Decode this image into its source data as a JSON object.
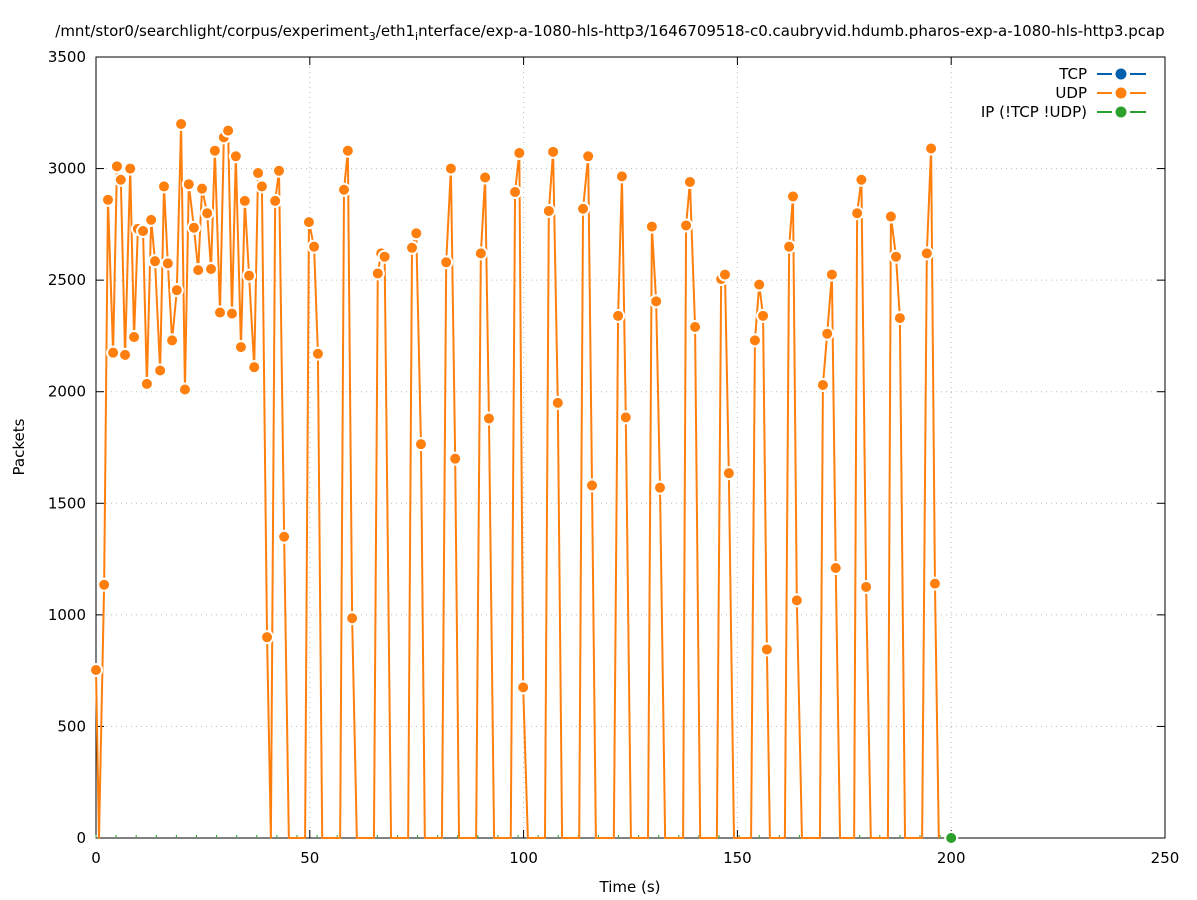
{
  "chart_data": {
    "type": "line",
    "title": "/mnt/stor0/searchlight/corpus/experiment_3/eth1_interface/exp-a-1080-hls-http3/1646709518-c0.caubryvid.hdumb.pharos-exp-a-1080-hls-http3.pcap",
    "xlabel": "Time (s)",
    "ylabel": "Packets",
    "xlim": [
      0,
      250
    ],
    "ylim": [
      0,
      3500
    ],
    "xticks": [
      0,
      50,
      100,
      150,
      200,
      250
    ],
    "yticks": [
      0,
      500,
      1000,
      1500,
      2000,
      2500,
      3000,
      3500
    ],
    "grid": true,
    "legend_position": "top-right",
    "series": [
      {
        "name": "TCP",
        "color": "#0060ad",
        "x": [],
        "y": []
      },
      {
        "name": "UDP",
        "color": "#ff7f0e",
        "x": [
          0,
          0.7,
          1.9,
          2.8,
          4,
          4.9,
          5.8,
          6.8,
          8,
          8.9,
          9.8,
          11,
          11.9,
          12.9,
          13.8,
          15,
          15.9,
          16.8,
          17.8,
          18.9,
          19.9,
          20.8,
          21.7,
          22.9,
          23.9,
          24.8,
          26,
          26.9,
          27.8,
          29,
          29.9,
          30.9,
          31.8,
          32.7,
          33.9,
          34.8,
          35.8,
          37,
          37.9,
          38.8,
          40,
          40.9,
          41.9,
          42.8,
          44,
          45.1,
          48.9,
          49.8,
          51,
          51.9,
          52.9,
          57.1,
          58,
          58.9,
          59.9,
          61,
          65,
          65.9,
          66.7,
          67.5,
          69,
          73,
          73.9,
          74.9,
          76,
          76.9,
          80.9,
          81.9,
          83,
          84,
          84.9,
          88.9,
          90,
          91,
          91.9,
          93.1,
          97,
          98,
          99,
          99.9,
          101,
          105,
          105.9,
          106.9,
          108,
          109,
          113,
          113.9,
          115.1,
          116,
          116.9,
          121.1,
          122.1,
          123,
          123.9,
          125.1,
          129.1,
          130,
          131,
          131.9,
          133.1,
          137.3,
          138,
          138.9,
          140.1,
          141.3,
          145.2,
          146.2,
          147.1,
          148,
          149.2,
          153.2,
          154.1,
          155.1,
          156,
          156.9,
          157.6,
          161.1,
          162.1,
          163,
          163.9,
          165.1,
          169.3,
          170,
          171,
          172.1,
          173,
          174,
          177.3,
          178,
          179,
          180.1,
          181.2,
          185.2,
          185.9,
          187.1,
          188,
          189.2,
          193.2,
          194.3,
          195.3,
          196.2,
          197.1
        ],
        "y": [
          753,
          0,
          1135,
          2860,
          2175,
          3010,
          2950,
          2165,
          3000,
          2245,
          2730,
          2720,
          2035,
          2770,
          2585,
          2095,
          2920,
          2575,
          2230,
          2455,
          3200,
          2010,
          2930,
          2735,
          2545,
          2910,
          2800,
          2550,
          3080,
          2355,
          3140,
          3170,
          2350,
          3055,
          2200,
          2855,
          2520,
          2110,
          2980,
          2920,
          900,
          0,
          2855,
          2990,
          1350,
          0,
          0,
          2760,
          2650,
          2170,
          0,
          0,
          2905,
          3080,
          985,
          0,
          0,
          2530,
          2620,
          2605,
          0,
          0,
          2645,
          2710,
          1765,
          0,
          0,
          2580,
          3000,
          1700,
          0,
          0,
          2620,
          2960,
          1880,
          0,
          0,
          2895,
          3070,
          675,
          0,
          0,
          2810,
          3075,
          1950,
          0,
          0,
          2820,
          3055,
          1580,
          0,
          0,
          2340,
          2965,
          1885,
          0,
          0,
          2740,
          2405,
          1570,
          0,
          0,
          2745,
          2940,
          2290,
          0,
          0,
          2505,
          2525,
          1635,
          0,
          0,
          2230,
          2480,
          2340,
          845,
          0,
          0,
          2650,
          2875,
          1065,
          0,
          0,
          2030,
          2260,
          2525,
          1210,
          0,
          0,
          2800,
          2950,
          1125,
          0,
          0,
          2785,
          2605,
          2330,
          0,
          0,
          2620,
          3090,
          1140,
          0
        ]
      },
      {
        "name": "IP (!TCP  !UDP)",
        "color": "#2ca02c",
        "x": [
          200
        ],
        "y": [
          0
        ]
      }
    ]
  }
}
